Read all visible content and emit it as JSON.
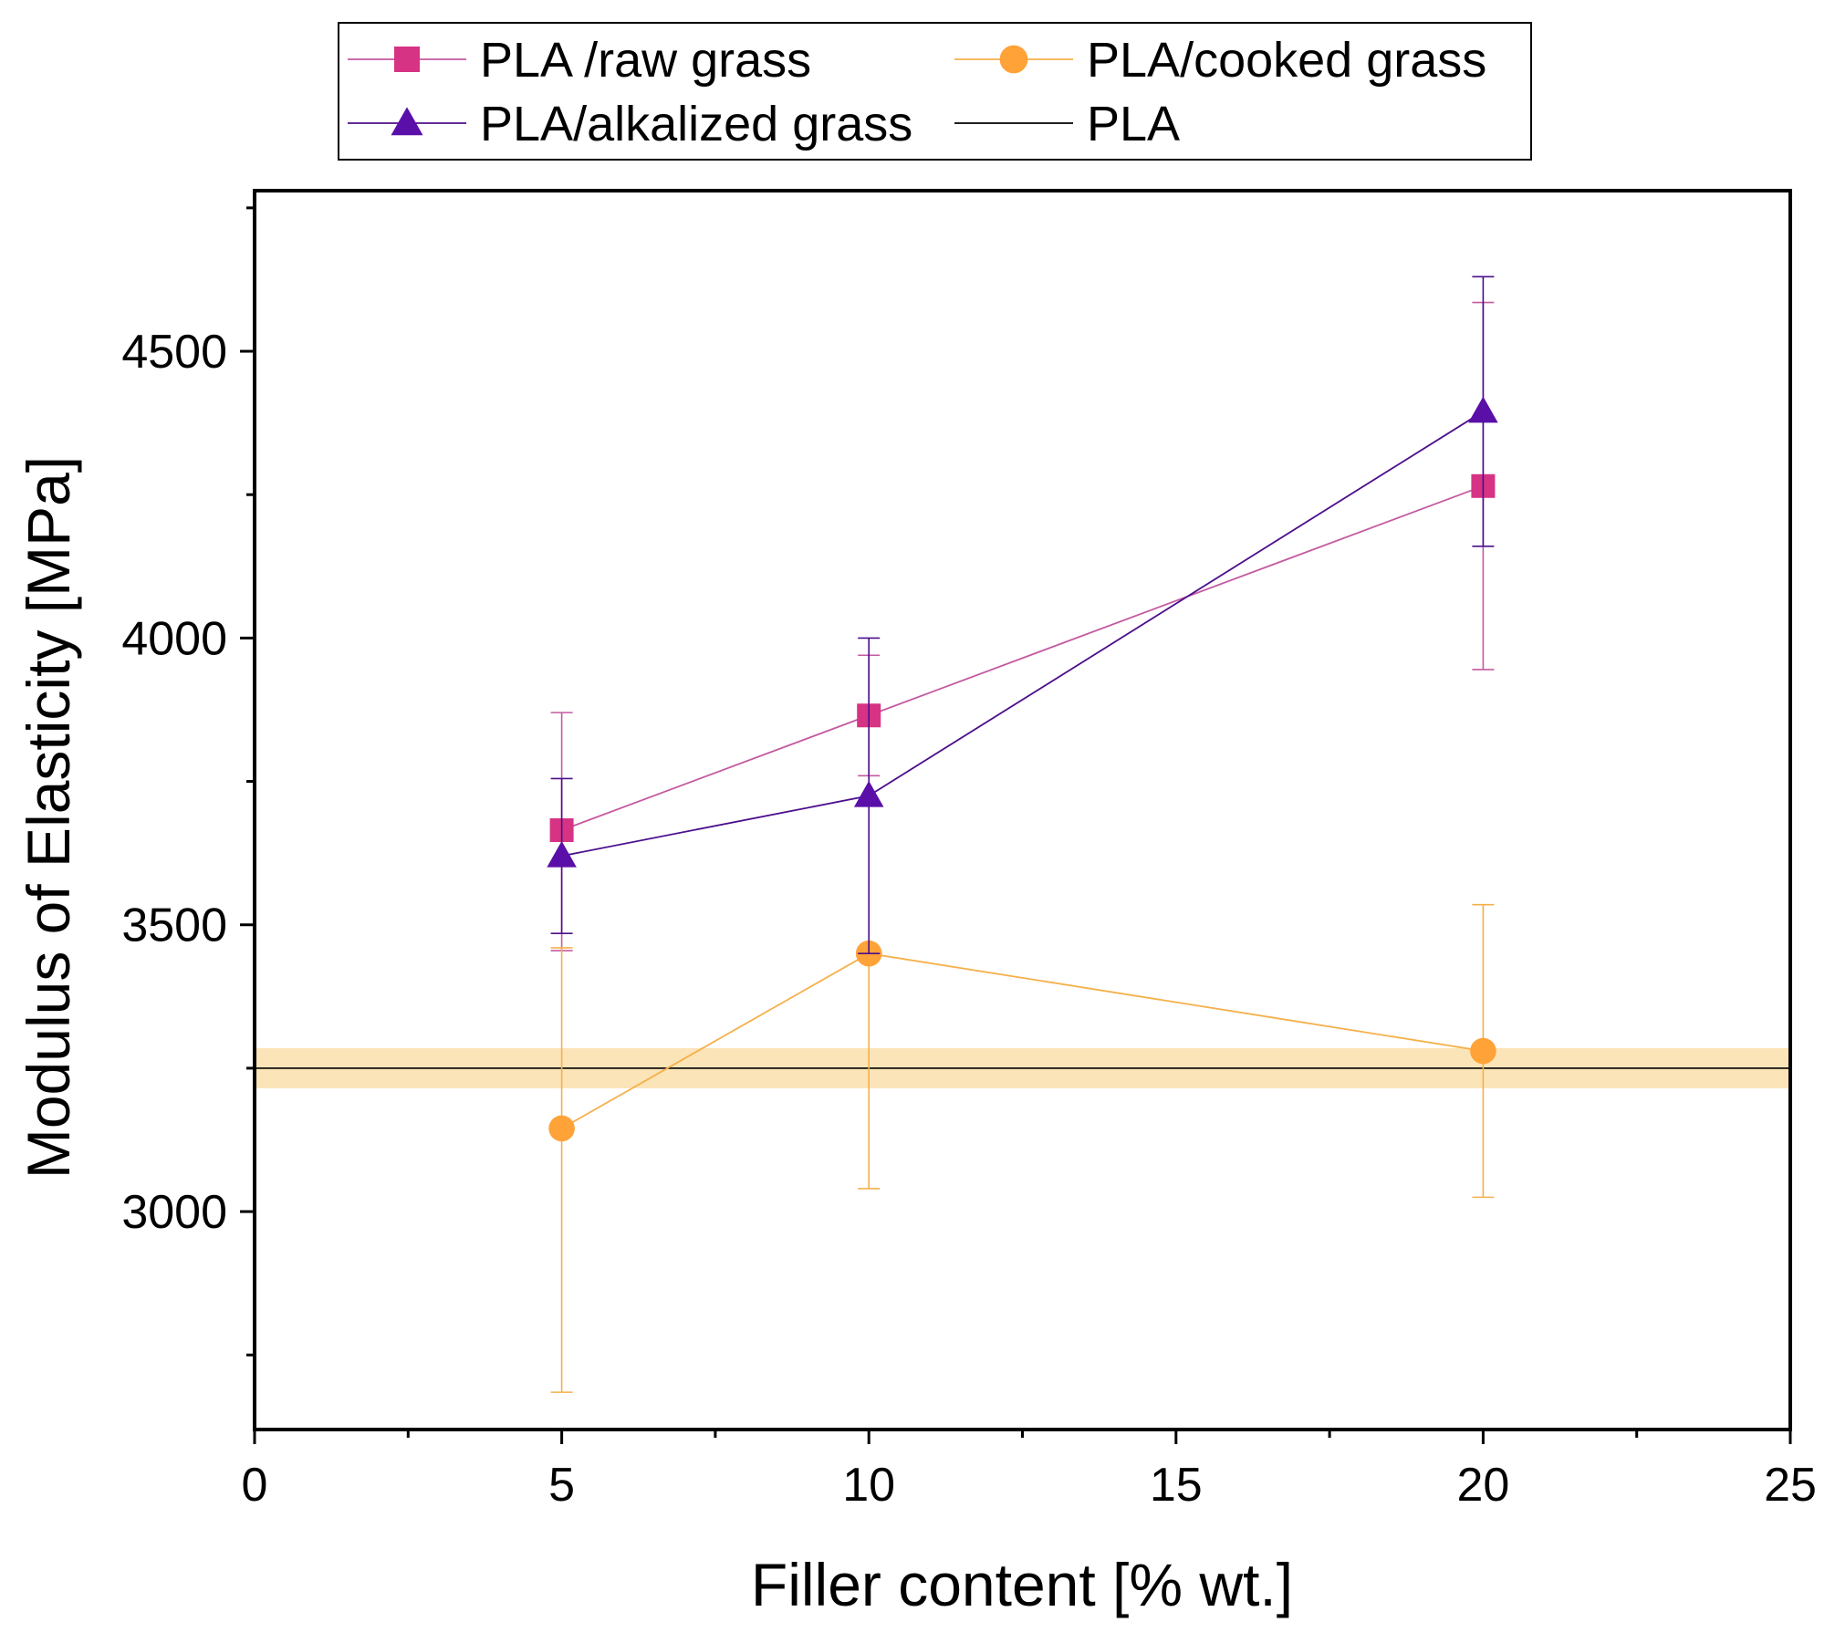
{
  "chart_data": {
    "type": "line",
    "xlabel": "Filler content [% wt.]",
    "ylabel": "Modulus of Elasticity [MPa]",
    "xlim": [
      0,
      25
    ],
    "ylim": [
      2620,
      4780
    ],
    "x_ticks": [
      0,
      5,
      10,
      15,
      20,
      25
    ],
    "x_tick_labels": [
      "0",
      "5",
      "10",
      "15",
      "20",
      "25"
    ],
    "y_ticks": [
      3000,
      3500,
      4000,
      4500
    ],
    "y_tick_labels": [
      "3000",
      "3500",
      "4000",
      "4500"
    ],
    "grid": false,
    "legend_position": "top, outside plot",
    "series": [
      {
        "name": "PLA /raw grass",
        "marker": "square",
        "color": "#d63384",
        "line_color": "#c45aa0",
        "x": [
          5,
          10,
          20
        ],
        "y": [
          3665,
          3865,
          4265
        ],
        "err_low": [
          210,
          105,
          320
        ],
        "err_high": [
          205,
          105,
          320
        ]
      },
      {
        "name": "PLA/cooked grass",
        "marker": "circle",
        "color": "#ffa238",
        "line_color": "#f5b04a",
        "x": [
          5,
          10,
          20
        ],
        "y": [
          3145,
          3450,
          3280
        ],
        "err_low": [
          460,
          410,
          255
        ],
        "err_high": [
          315,
          0,
          255
        ]
      },
      {
        "name": "PLA/alkalized grass",
        "marker": "triangle",
        "color": "#5a0fa8",
        "line_color": "#4b0f8c",
        "x": [
          5,
          10,
          20
        ],
        "y": [
          3620,
          3725,
          4395
        ],
        "err_low": [
          135,
          275,
          235
        ],
        "err_high": [
          135,
          275,
          235
        ]
      }
    ],
    "reference_line": {
      "name": "PLA",
      "y": 3250,
      "band": [
        3215,
        3285
      ],
      "line_color": "#000000",
      "band_color": "#fbe4b8"
    }
  }
}
